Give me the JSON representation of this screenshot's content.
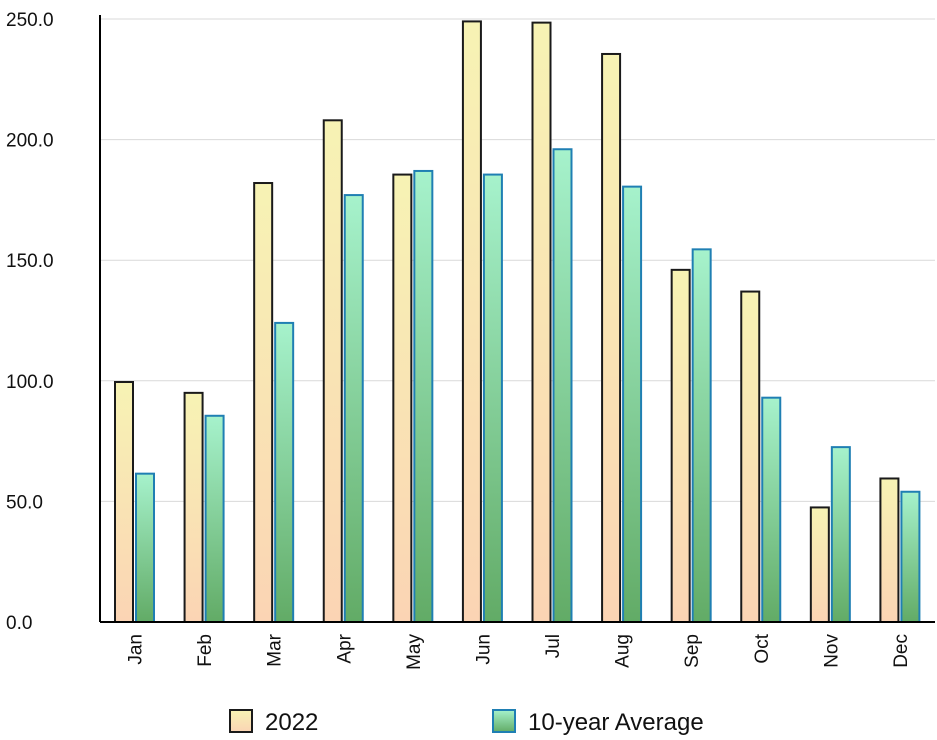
{
  "chart_data": {
    "type": "bar",
    "categories": [
      "Jan",
      "Feb",
      "Mar",
      "Apr",
      "May",
      "Jun",
      "Jul",
      "Aug",
      "Sep",
      "Oct",
      "Nov",
      "Dec"
    ],
    "series": [
      {
        "name": "2022",
        "values": [
          99.5,
          95.0,
          182.0,
          208.0,
          185.5,
          249.0,
          248.5,
          235.5,
          146.0,
          137.0,
          47.5,
          59.5
        ]
      },
      {
        "name": "10-year Average",
        "values": [
          61.5,
          85.5,
          124.0,
          177.0,
          187.0,
          185.5,
          196.0,
          180.5,
          154.5,
          93.0,
          72.5,
          54.0
        ]
      }
    ],
    "yticks": [
      "0.0",
      "50.0",
      "100.0",
      "150.0",
      "200.0",
      "250.0"
    ],
    "ylim": [
      0,
      250
    ],
    "grid": true,
    "legend": "bottom",
    "colors": {
      "series_0_top": "#f7f3b4",
      "series_0_bottom": "#fbd4b4",
      "series_0_stroke": "#1a1a1a",
      "series_1_top": "#a6f2cc",
      "series_1_bottom": "#62ab66",
      "series_1_stroke": "#1f7fb3",
      "grid": "#d9d9d9",
      "axis": "#000000"
    }
  }
}
